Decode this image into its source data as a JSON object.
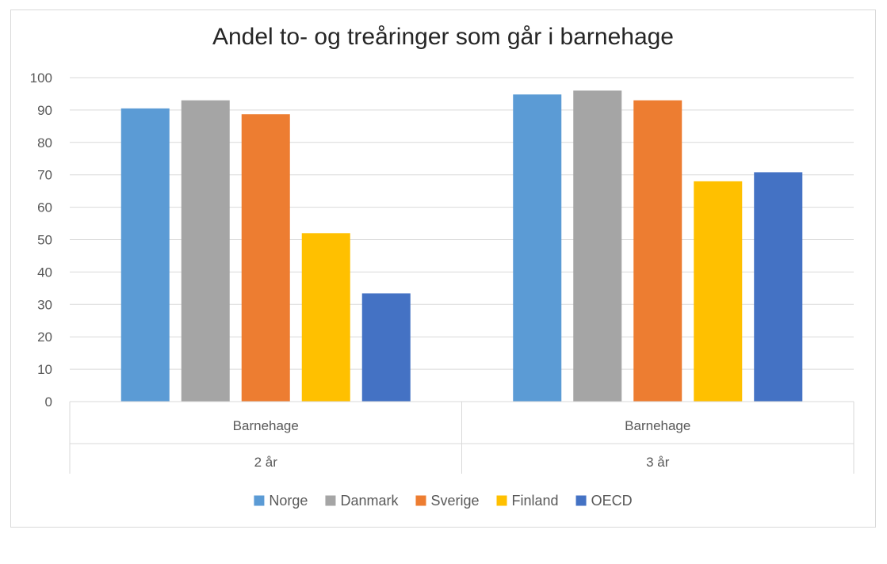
{
  "chart_data": {
    "type": "bar",
    "title": "Andel to- og treåringer som går i barnehage",
    "xlabel": "",
    "ylabel": "",
    "ylim": [
      0,
      100
    ],
    "yticks": [
      0,
      10,
      20,
      30,
      40,
      50,
      60,
      70,
      80,
      90,
      100
    ],
    "grid": true,
    "legend_position": "bottom",
    "categories": [
      {
        "group": "Barnehage",
        "label": "2 år"
      },
      {
        "group": "Barnehage",
        "label": "3 år"
      }
    ],
    "series": [
      {
        "name": "Norge",
        "color": "#5b9bd5",
        "values": [
          90.5,
          94.8
        ]
      },
      {
        "name": "Danmark",
        "color": "#a5a5a5",
        "values": [
          93.0,
          96.0
        ]
      },
      {
        "name": "Sverige",
        "color": "#ed7d31",
        "values": [
          88.7,
          93.0
        ]
      },
      {
        "name": "Finland",
        "color": "#ffc000",
        "values": [
          52.0,
          68.0
        ]
      },
      {
        "name": "OECD",
        "color": "#4472c4",
        "values": [
          33.4,
          70.8
        ]
      }
    ]
  }
}
